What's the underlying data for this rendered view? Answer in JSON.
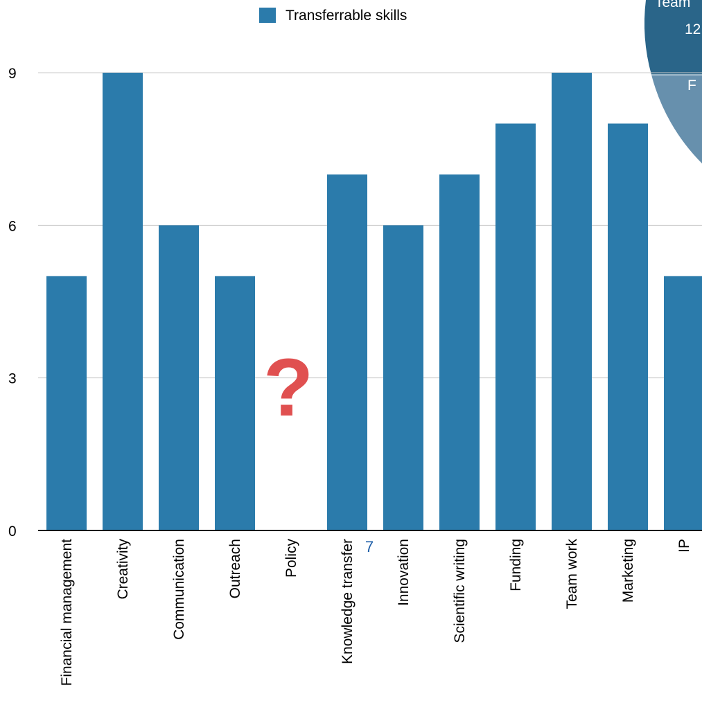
{
  "chart_data": {
    "type": "bar",
    "categories": [
      "Financial management",
      "Creativity",
      "Communication",
      "Outreach",
      "Policy",
      "Knowledge transfer",
      "Innovation",
      "Scientific writing",
      "Funding",
      "Team work",
      "Marketing",
      "IP"
    ],
    "series": [
      {
        "name": "Transferrable skills",
        "values": [
          5,
          9,
          6,
          5,
          null,
          7,
          6,
          7,
          8,
          9,
          8,
          5
        ]
      }
    ],
    "yticks": [
      0,
      3,
      6,
      9
    ],
    "ylim": [
      0,
      9
    ],
    "grid": true,
    "legend": "top-center",
    "annotation": "?",
    "colors": {
      "bar": "#2b7bab",
      "grid": "#c8c8c8",
      "annotation": "#e05050",
      "pie_dark": "#2a6589",
      "pie_light": "#6790ad",
      "page_number": "#1f5fa8"
    }
  },
  "pie_fragment": {
    "labels": [
      "Team",
      "12",
      "F"
    ]
  },
  "page_number": "7"
}
